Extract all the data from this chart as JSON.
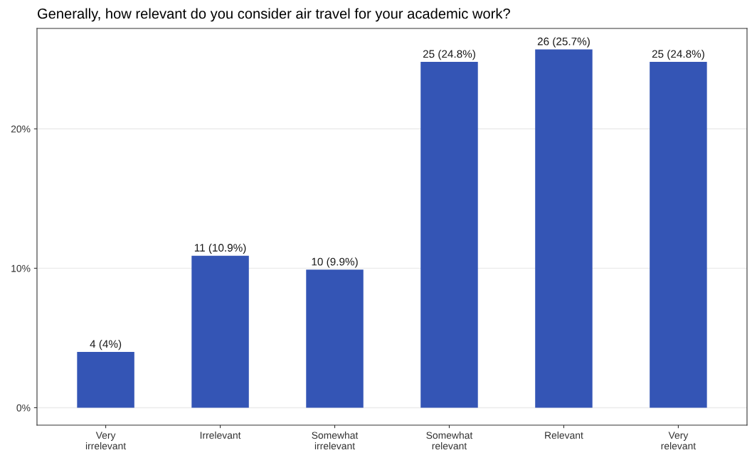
{
  "chart_data": {
    "type": "bar",
    "title": "Generally, how relevant do you consider air travel for your academic work?",
    "categories": [
      "Very\nirrelevant",
      "Irrelevant",
      "Somewhat\nirrelevant",
      "Somewhat\nrelevant",
      "Relevant",
      "Very\nrelevant"
    ],
    "values": [
      4,
      10.9,
      9.9,
      24.8,
      25.7,
      24.8
    ],
    "value_labels": [
      "4 (4%)",
      "11 (10.9%)",
      "10 (9.9%)",
      "25 (24.8%)",
      "26 (25.7%)",
      "25 (24.8%)"
    ],
    "color": "#3455b5",
    "ylim": [
      -1.25,
      27.2
    ],
    "yticks": [
      {
        "value": 0,
        "label": "0%"
      },
      {
        "value": 10,
        "label": "10%"
      },
      {
        "value": 20,
        "label": "20%"
      }
    ],
    "grid": true
  }
}
